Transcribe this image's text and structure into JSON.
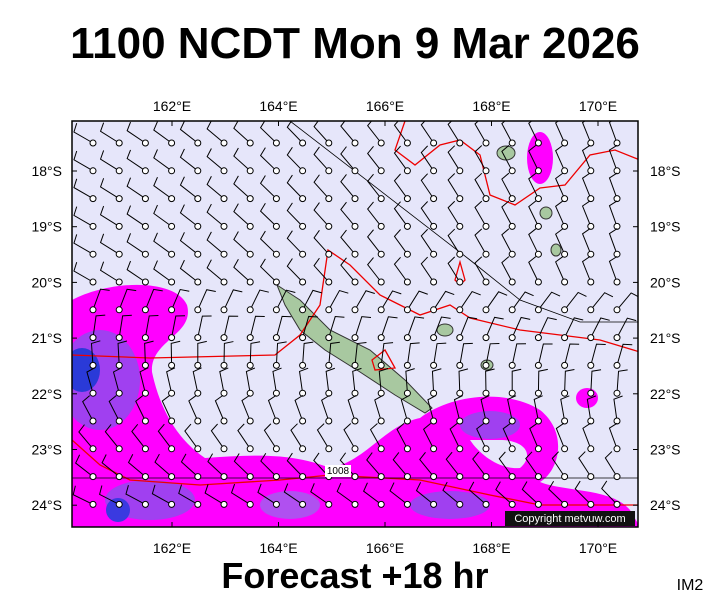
{
  "title": "1100 NCDT Mon 9 Mar 2026",
  "map": {
    "lon_labels": [
      "162°E",
      "164°E",
      "166°E",
      "168°E",
      "170°E"
    ],
    "lat_labels": [
      "18°S",
      "19°S",
      "20°S",
      "21°S",
      "22°S",
      "23°S",
      "24°S"
    ],
    "isobar_label": "1008",
    "copyright": "Copyright metvuw.com"
  },
  "footer": "Forecast +18 hr",
  "image_id": "IM2"
}
